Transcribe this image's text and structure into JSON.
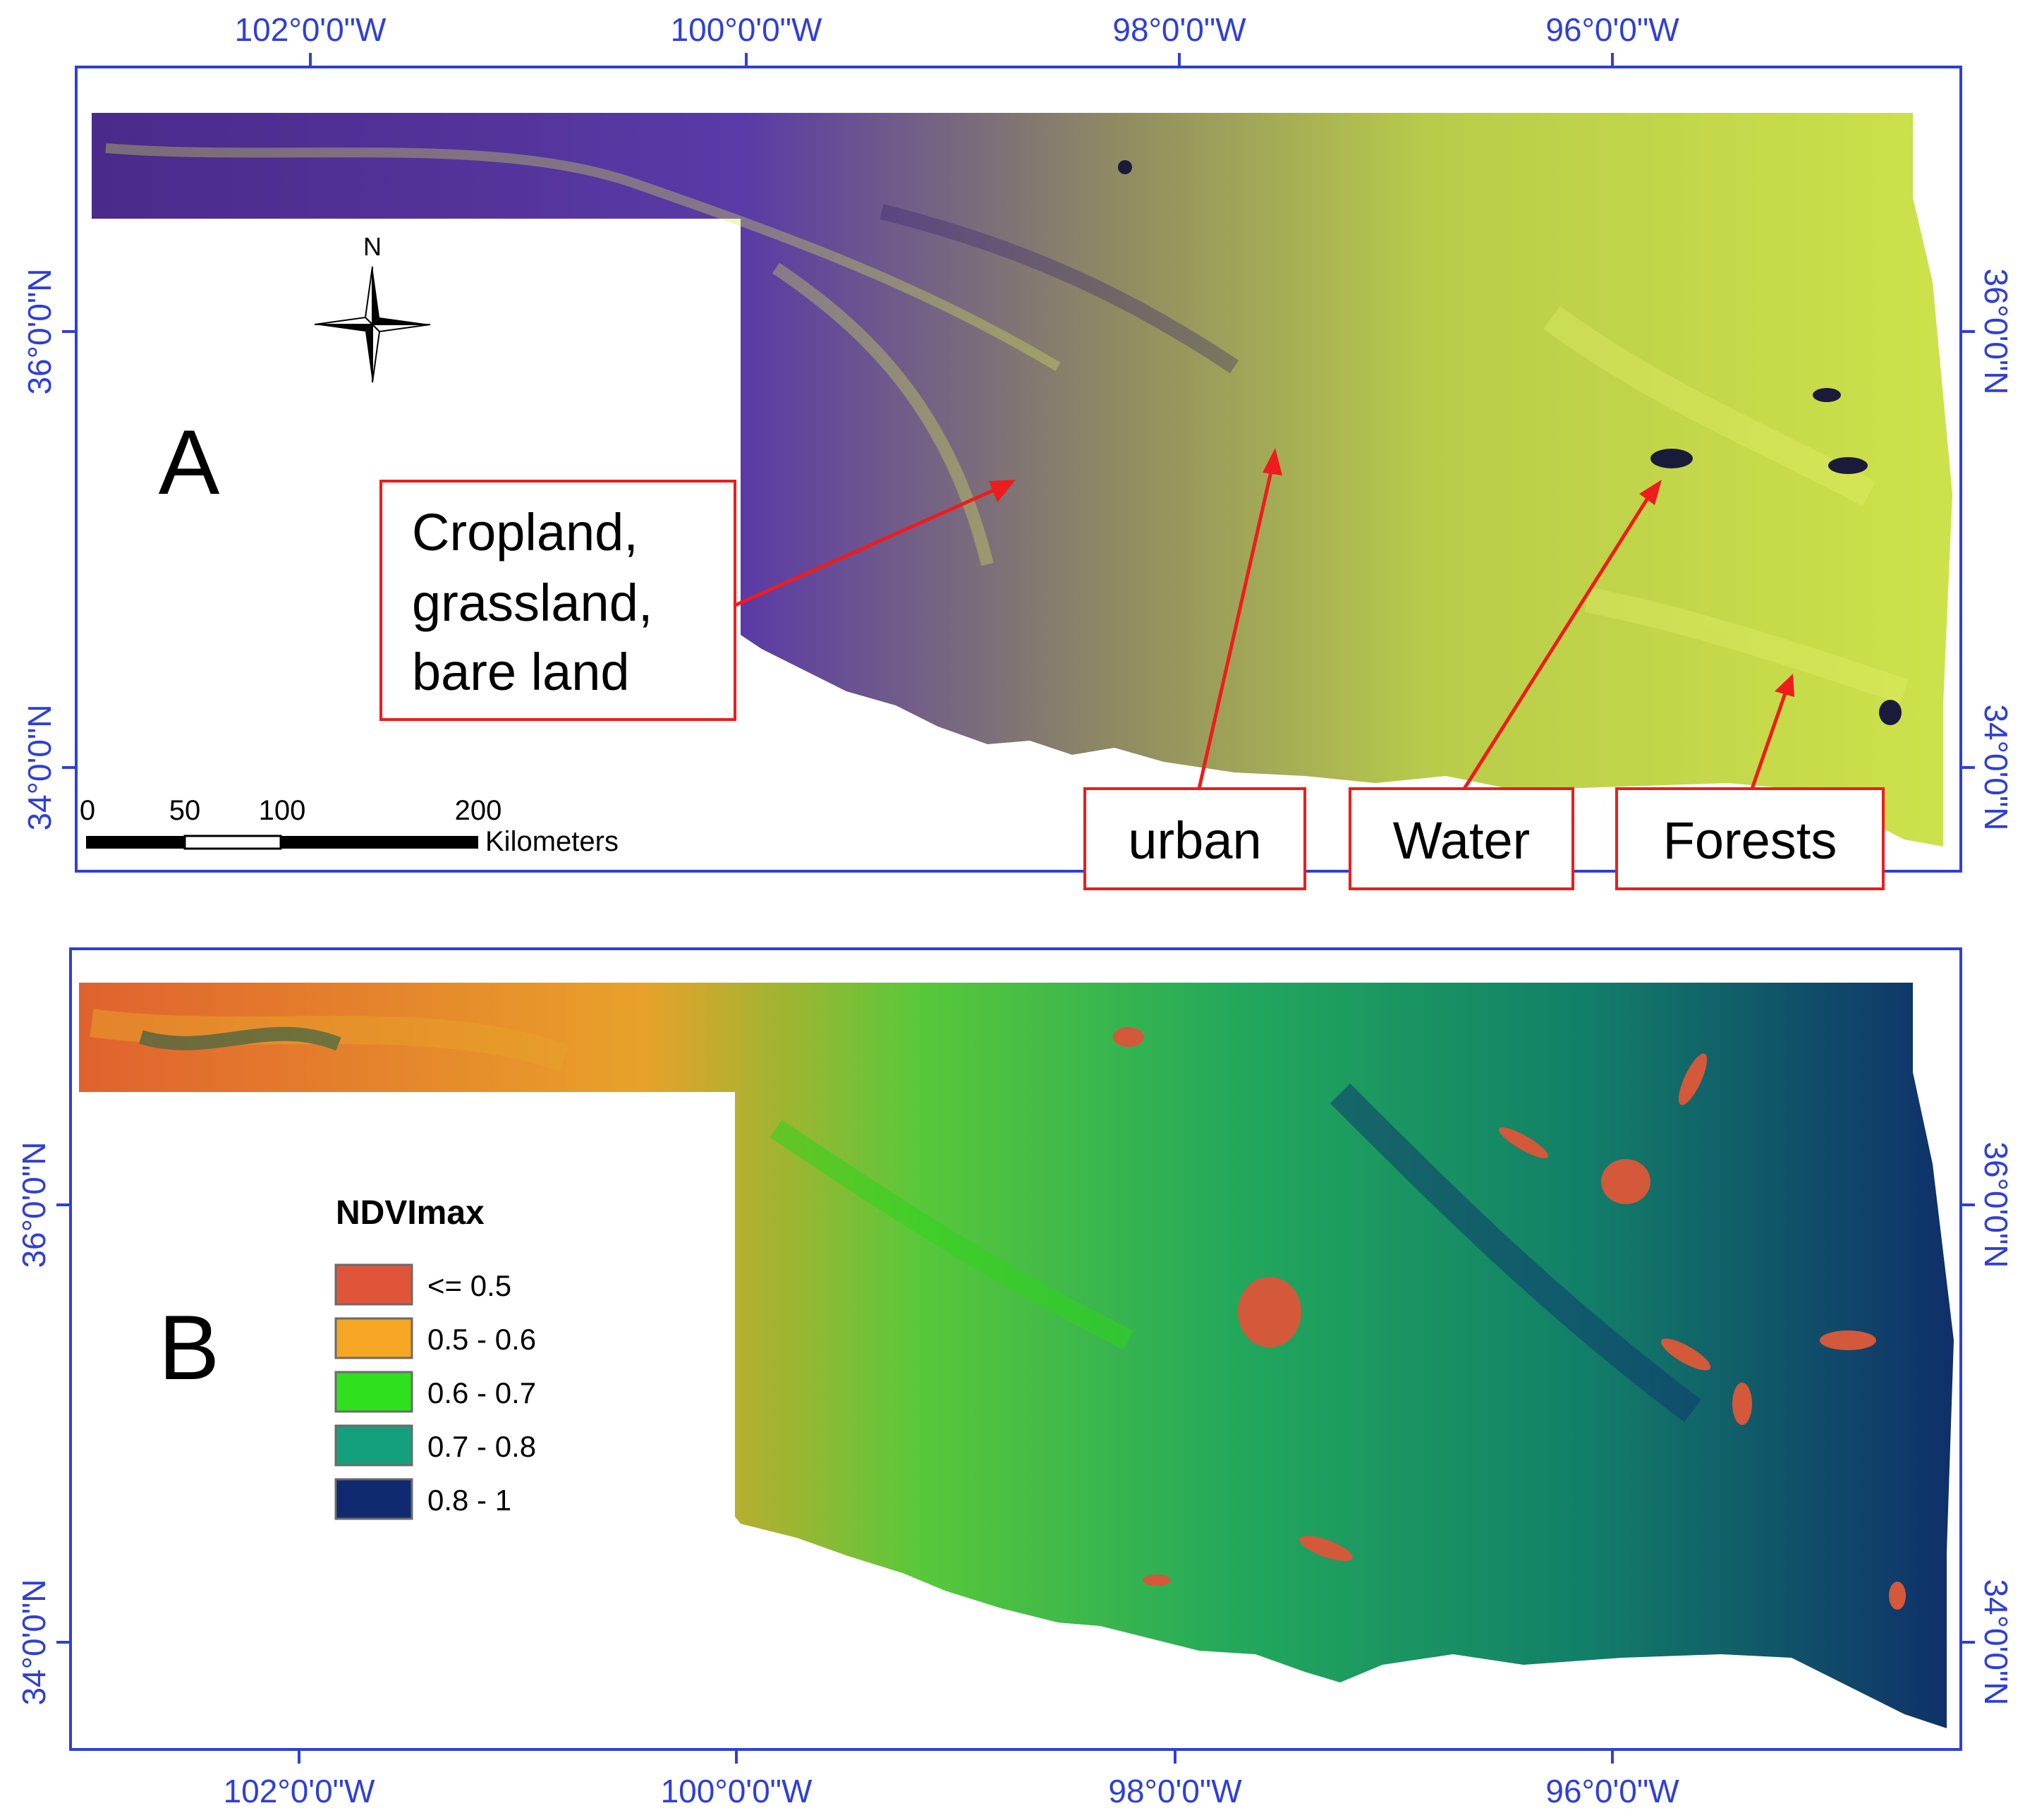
{
  "panel_a": {
    "label": "A",
    "lon_labels_top": [
      "102°0'0\"W",
      "100°0'0\"W",
      "98°0'0\"W",
      "96°0'0\"W"
    ],
    "lat_labels": [
      "36°0'0\"N",
      "34°0'0\"N"
    ],
    "north_arrow": {
      "label": "N",
      "icon": "north-arrow-icon"
    },
    "scale_bar": {
      "ticks": [
        "0",
        "50",
        "100",
        "200"
      ],
      "unit": "Kilometers"
    },
    "annotations": {
      "cropland": [
        "Cropland,",
        "grassland,",
        "bare land"
      ],
      "urban": "urban",
      "water": "Water",
      "forests": "Forests"
    }
  },
  "panel_b": {
    "label": "B",
    "lon_labels_bottom": [
      "102°0'0\"W",
      "100°0'0\"W",
      "98°0'0\"W",
      "96°0'0\"W"
    ],
    "lat_labels": [
      "36°0'0\"N",
      "34°0'0\"N"
    ],
    "legend": {
      "title": "NDVImax",
      "items": [
        {
          "label": "<= 0.5",
          "color": "#e0553a"
        },
        {
          "label": "0.5 - 0.6",
          "color": "#f5a623"
        },
        {
          "label": "0.6 - 0.7",
          "color": "#2fe01e"
        },
        {
          "label": "0.7 - 0.8",
          "color": "#14a07c"
        },
        {
          "label": "0.8 - 1",
          "color": "#0f2a6e"
        }
      ]
    }
  },
  "colors": {
    "frame": "#2f3fd6",
    "annotation_red": "#ee1c1c",
    "purple": "#5a35a0",
    "yellow_green": "#c8e045"
  }
}
